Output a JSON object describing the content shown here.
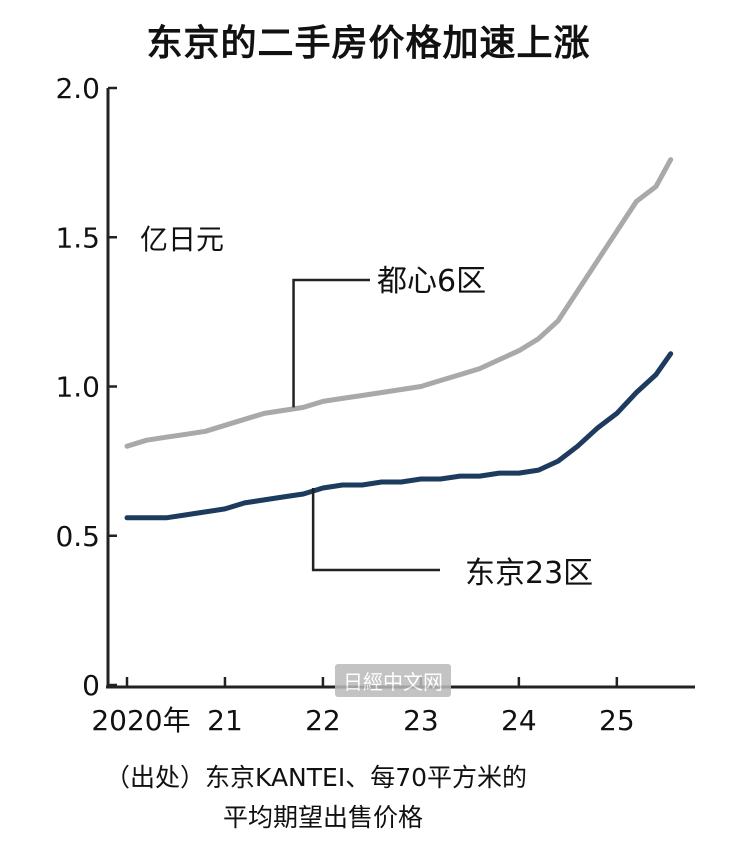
{
  "title": "东京的二手房价格加速上涨",
  "unit_label": "亿日元",
  "source_line1": "（出处）东京KANTEI、每70平方米的",
  "source_line2": "平均期望出售价格",
  "watermark_text": "日經中文网",
  "chart_data": {
    "type": "line",
    "title": "东京的二手房价格加速上涨",
    "ylabel": "亿日元",
    "xlabel": "",
    "ylim": [
      0,
      2.0
    ],
    "yticks": [
      "0",
      "0.5",
      "1.0",
      "1.5",
      "2.0"
    ],
    "ytick_values": [
      0,
      0.5,
      1.0,
      1.5,
      2.0
    ],
    "xlim": [
      2020.0,
      2025.9
    ],
    "xticks": [
      "2020年",
      "21",
      "22",
      "23",
      "24",
      "25"
    ],
    "xtick_values": [
      2020,
      2021,
      2022,
      2023,
      2024,
      2025
    ],
    "grid": false,
    "series": [
      {
        "name": "都心6区",
        "color": "#a9a9a9",
        "x": [
          2020.0,
          2020.2,
          2020.4,
          2020.6,
          2020.8,
          2021.0,
          2021.2,
          2021.4,
          2021.6,
          2021.8,
          2022.0,
          2022.2,
          2022.4,
          2022.6,
          2022.8,
          2023.0,
          2023.2,
          2023.4,
          2023.6,
          2023.8,
          2024.0,
          2024.2,
          2024.4,
          2024.6,
          2024.8,
          2025.0,
          2025.2,
          2025.4,
          2025.55
        ],
        "y": [
          0.8,
          0.82,
          0.83,
          0.84,
          0.85,
          0.87,
          0.89,
          0.91,
          0.92,
          0.93,
          0.95,
          0.96,
          0.97,
          0.98,
          0.99,
          1.0,
          1.02,
          1.04,
          1.06,
          1.09,
          1.12,
          1.16,
          1.22,
          1.32,
          1.42,
          1.52,
          1.62,
          1.67,
          1.76
        ]
      },
      {
        "name": "东京23区",
        "color": "#1d3b5e",
        "x": [
          2020.0,
          2020.2,
          2020.4,
          2020.6,
          2020.8,
          2021.0,
          2021.2,
          2021.4,
          2021.6,
          2021.8,
          2022.0,
          2022.2,
          2022.4,
          2022.6,
          2022.8,
          2023.0,
          2023.2,
          2023.4,
          2023.6,
          2023.8,
          2024.0,
          2024.2,
          2024.4,
          2024.6,
          2024.8,
          2025.0,
          2025.2,
          2025.4,
          2025.55
        ],
        "y": [
          0.56,
          0.56,
          0.56,
          0.57,
          0.58,
          0.59,
          0.61,
          0.62,
          0.63,
          0.64,
          0.66,
          0.67,
          0.67,
          0.68,
          0.68,
          0.69,
          0.69,
          0.7,
          0.7,
          0.71,
          0.71,
          0.72,
          0.75,
          0.8,
          0.86,
          0.91,
          0.98,
          1.04,
          1.11
        ]
      }
    ]
  }
}
